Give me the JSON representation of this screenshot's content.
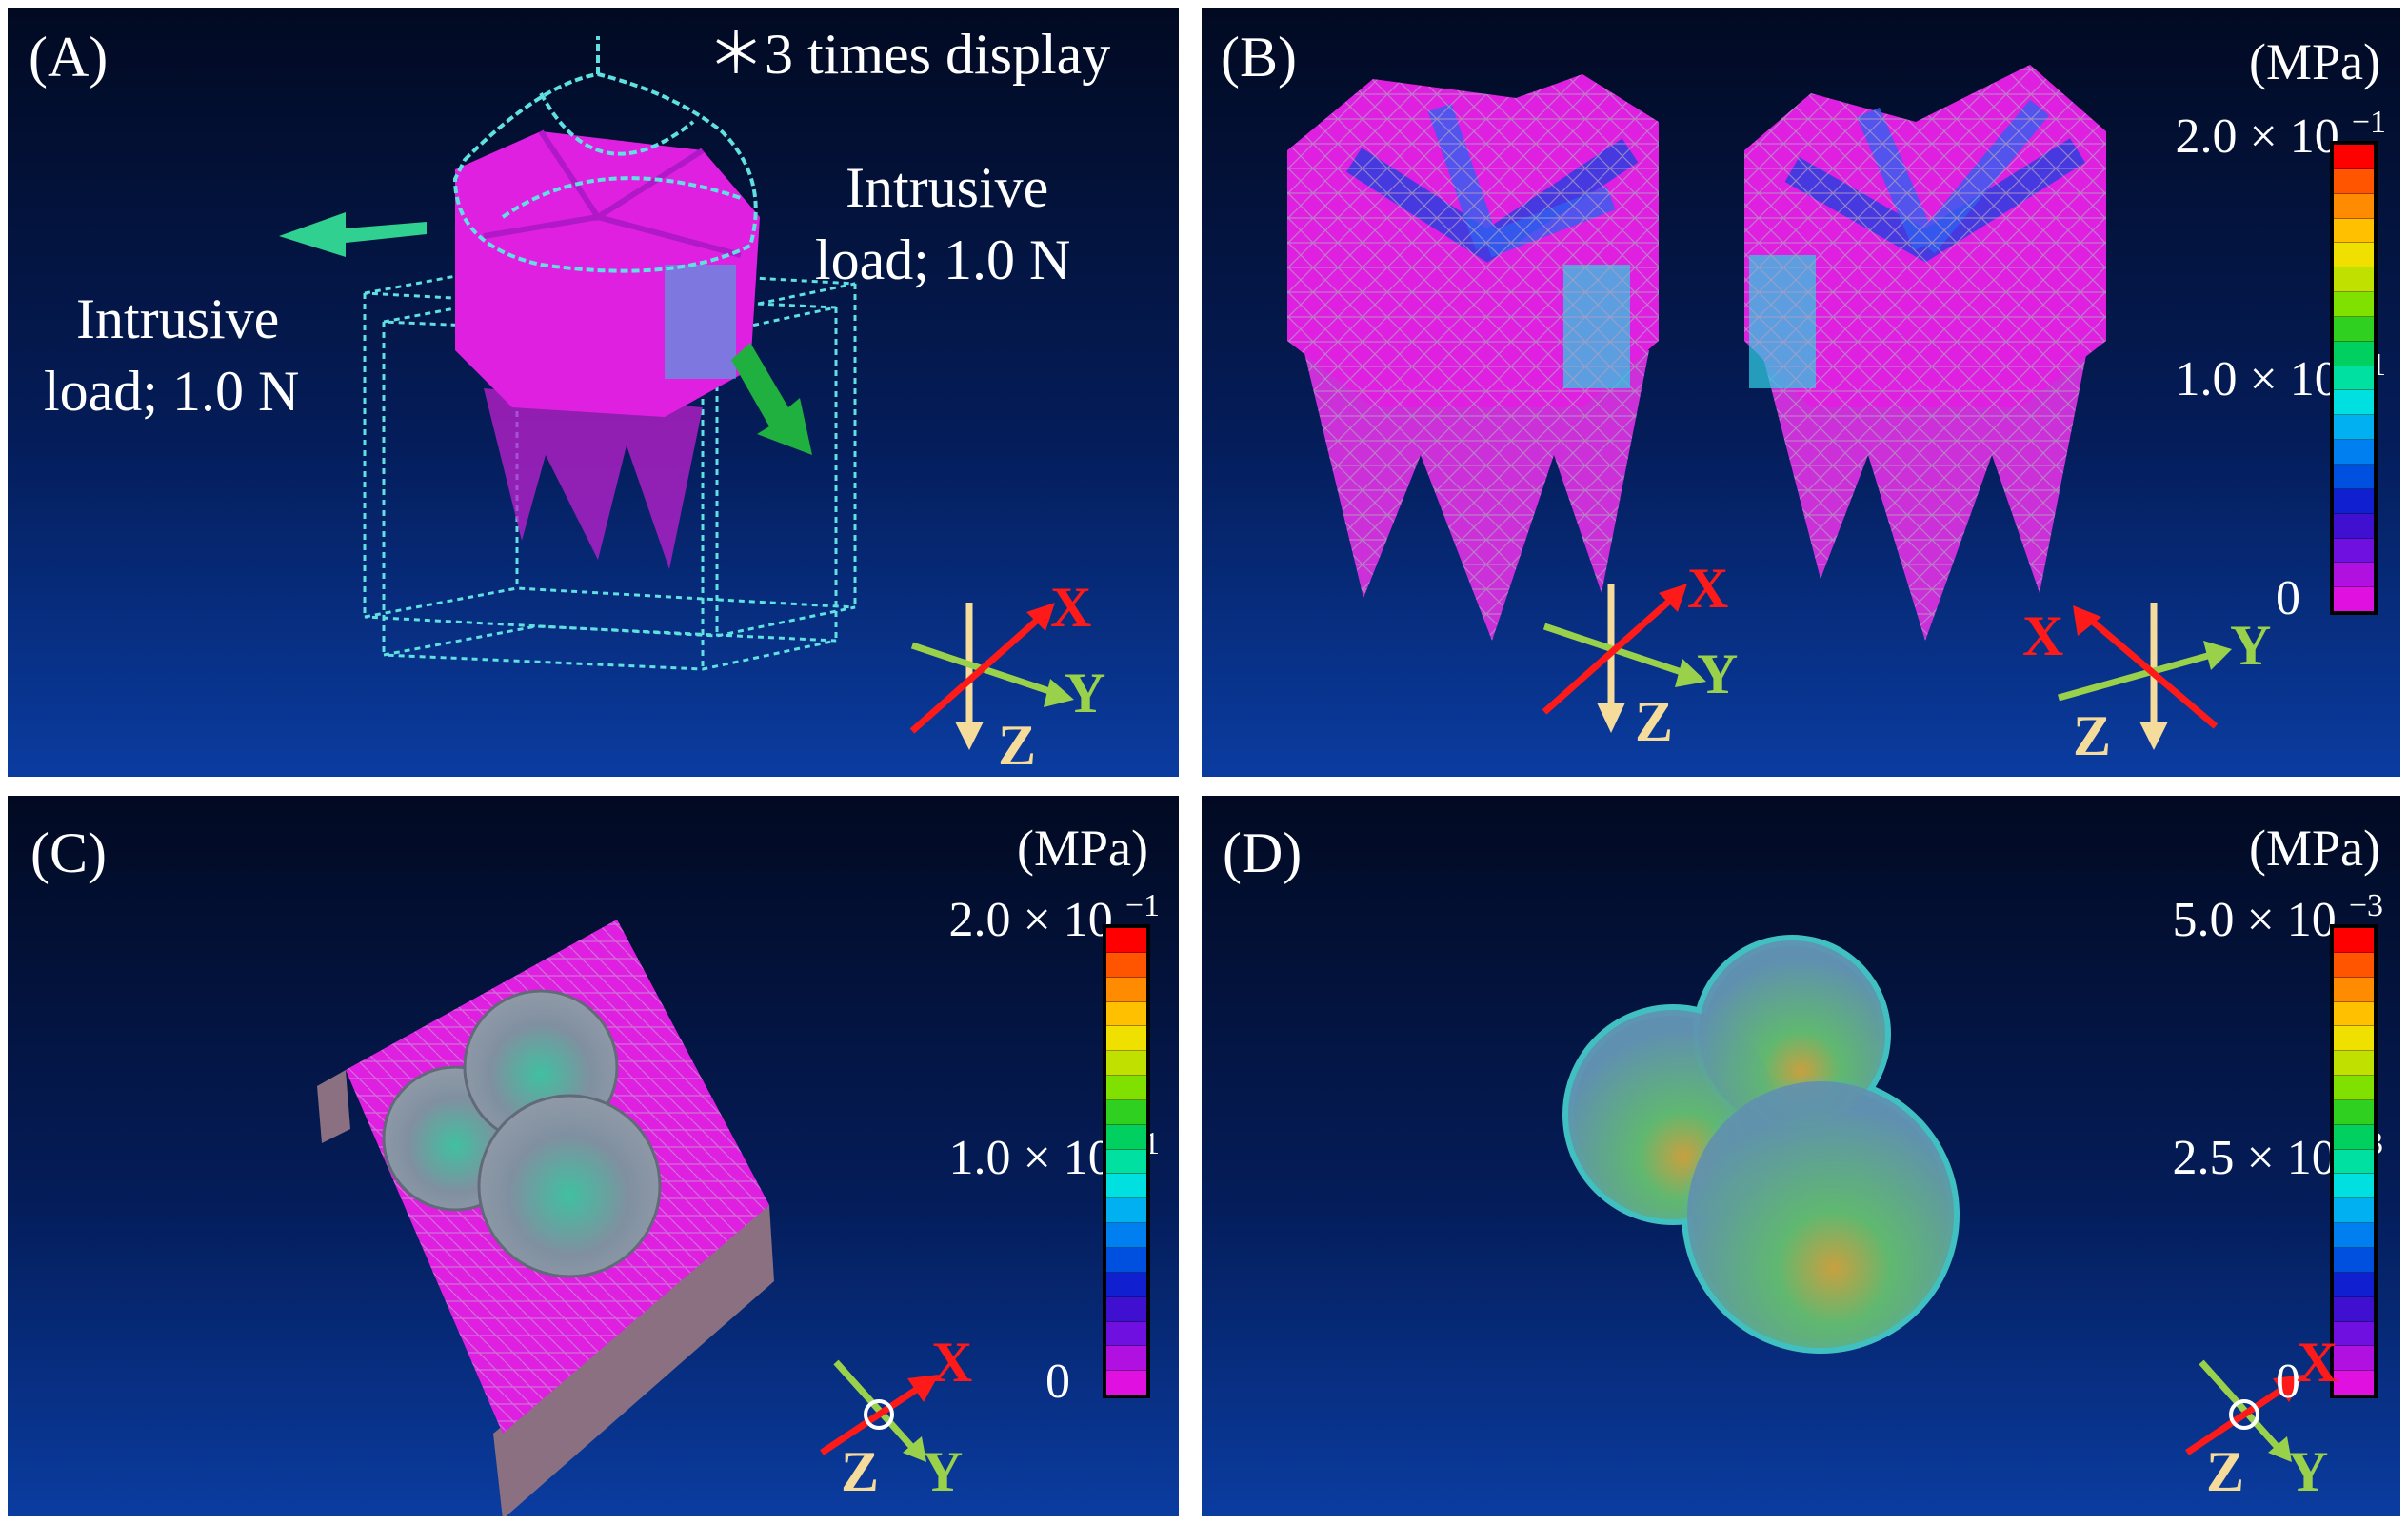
{
  "panels": {
    "A": {
      "label": "(A)",
      "note": "＊3 times display",
      "load_right": [
        "Intrusive",
        "load; 1.0 N"
      ],
      "load_left": [
        "Intrusive",
        "load; 1.0 N"
      ]
    },
    "B": {
      "label": "(B)",
      "unit": "(MPa)",
      "ticks": [
        "2.0 × 10",
        "1.0 × 10",
        "0"
      ],
      "exp": "−1"
    },
    "C": {
      "label": "(C)",
      "unit": "(MPa)",
      "ticks": [
        "2.0 × 10",
        "1.0 × 10",
        "0"
      ],
      "exp": "−1"
    },
    "D": {
      "label": "(D)",
      "unit": "(MPa)",
      "ticks": [
        "5.0 × 10",
        "2.5 × 10",
        "0"
      ],
      "exp": "−3"
    }
  },
  "axes": {
    "x": "X",
    "y": "Y",
    "z": "Z"
  },
  "colors": {
    "x_axis": "#ff1a1a",
    "y_axis": "#9ad14a",
    "z_axis": "#f5dc9a",
    "mesh_fill": "#e020e0",
    "wire": "#60e0e0",
    "arrow": "#30d070"
  },
  "colorbar": [
    "#ff0000",
    "#ff5500",
    "#ff8c00",
    "#ffc000",
    "#f0e000",
    "#c0e000",
    "#80e000",
    "#30d020",
    "#00d060",
    "#00e0a0",
    "#00e0e0",
    "#00b0f0",
    "#0080f0",
    "#0050e0",
    "#1020d0",
    "#4010d0",
    "#7010e0",
    "#b010e0",
    "#e010e0"
  ]
}
